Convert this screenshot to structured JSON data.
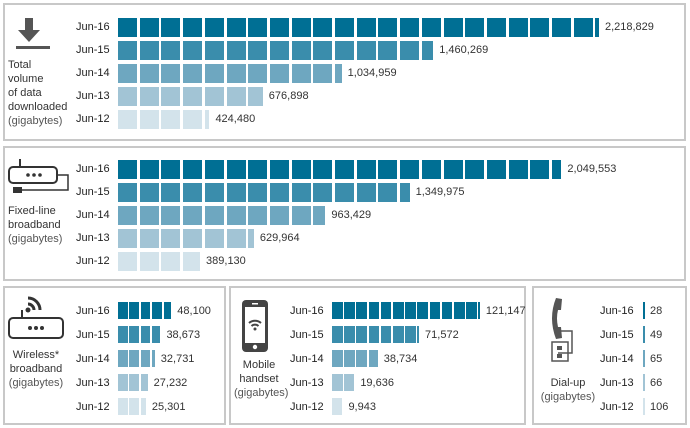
{
  "chart_data": [
    {
      "type": "bar",
      "id": "total",
      "title_lines": [
        "Total",
        "volume",
        "of data",
        "downloaded"
      ],
      "unit": "(gigabytes)",
      "icon": "download-arrow-icon",
      "block_value": 100000,
      "categories": [
        "Jun-16",
        "Jun-15",
        "Jun-14",
        "Jun-13",
        "Jun-12"
      ],
      "values": [
        2218829,
        1460269,
        1034959,
        676898,
        424480
      ],
      "value_labels": [
        "2,218,829",
        "1,460,269",
        "1,034,959",
        "676,898",
        "424,480"
      ]
    },
    {
      "type": "bar",
      "id": "fixed",
      "title_lines": [
        "Fixed-line",
        "broadband"
      ],
      "unit": "(gigabytes)",
      "icon": "modem-icon",
      "block_value": 100000,
      "categories": [
        "Jun-16",
        "Jun-15",
        "Jun-14",
        "Jun-13",
        "Jun-12"
      ],
      "values": [
        2049553,
        1349975,
        963429,
        629964,
        389130
      ],
      "value_labels": [
        "2,049,553",
        "1,349,975",
        "963,429",
        "629,964",
        "389,130"
      ]
    },
    {
      "type": "bar",
      "id": "wireless",
      "title_lines": [
        "Wireless*",
        "broadband"
      ],
      "unit": "(gigabytes)",
      "icon": "wireless-router-icon",
      "block_value": 10000,
      "categories": [
        "Jun-16",
        "Jun-15",
        "Jun-14",
        "Jun-13",
        "Jun-12"
      ],
      "values": [
        48100,
        38673,
        32731,
        27232,
        25301
      ],
      "value_labels": [
        "48,100",
        "38,673",
        "32,731",
        "27,232",
        "25,301"
      ]
    },
    {
      "type": "bar",
      "id": "mobile",
      "title_lines": [
        "Mobile",
        "handset"
      ],
      "unit": "(gigabytes)",
      "icon": "mobile-phone-icon",
      "block_value": 10000,
      "categories": [
        "Jun-16",
        "Jun-15",
        "Jun-14",
        "Jun-13",
        "Jun-12"
      ],
      "values": [
        121147,
        71572,
        38734,
        19636,
        9943
      ],
      "value_labels": [
        "121,147",
        "71,572",
        "38,734",
        "19,636",
        "9,943"
      ]
    },
    {
      "type": "bar",
      "id": "dialup",
      "title_lines": [
        "Dial-up"
      ],
      "unit": "(gigabytes)",
      "icon": "telephone-icon",
      "block_value": 10000,
      "categories": [
        "Jun-16",
        "Jun-15",
        "Jun-14",
        "Jun-13",
        "Jun-12"
      ],
      "values": [
        28,
        49,
        65,
        66,
        106
      ],
      "value_labels": [
        "28",
        "49",
        "65",
        "66",
        "106"
      ]
    }
  ],
  "colors": [
    "#006f94",
    "#3a8dac",
    "#6ea7c0",
    "#a2c4d5",
    "#d3e3eb"
  ]
}
